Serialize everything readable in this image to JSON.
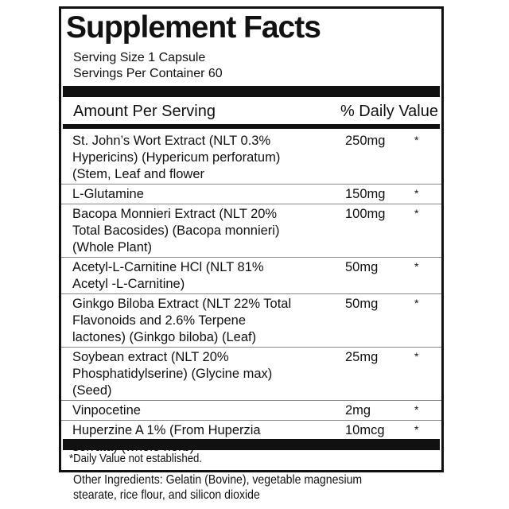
{
  "title": "Supplement Facts",
  "serving_size": "Serving Size 1 Capsule",
  "servings_per_container": "Servings Per Container 60",
  "header": {
    "amount": "Amount Per Serving",
    "daily_value": "% Daily Value"
  },
  "ingredients": [
    {
      "lines": [
        "St. John’s Wort Extract (NLT 0.3%",
        "Hypericins) (Hypericum perforatum)",
        "(Stem, Leaf and flower"
      ],
      "amount": "250mg",
      "dv": "*"
    },
    {
      "lines": [
        "L-Glutamine"
      ],
      "amount": "150mg",
      "dv": "*"
    },
    {
      "lines": [
        "Bacopa Monnieri Extract (NLT 20%",
        "Total Bacosides) (Bacopa monnieri)",
        "(Whole Plant)"
      ],
      "amount": "100mg",
      "dv": "*"
    },
    {
      "lines": [
        "Acetyl-L-Carnitine HCl (NLT 81%",
        "Acetyl -L-Carnitine)"
      ],
      "amount": "50mg",
      "dv": "*"
    },
    {
      "lines": [
        "Ginkgo Biloba Extract (NLT 22% Total",
        "Flavonoids and 2.6% Terpene",
        "lactones) (Ginkgo biloba) (Leaf)"
      ],
      "amount": "50mg",
      "dv": "*"
    },
    {
      "lines": [
        "Soybean extract (NLT 20%",
        "Phosphatidylserine) (Glycine max)",
        "(Seed)"
      ],
      "amount": "25mg",
      "dv": "*"
    },
    {
      "lines": [
        "Vinpocetine"
      ],
      "amount": "2mg",
      "dv": "*"
    },
    {
      "lines": [
        "Huperzine A 1% (From Huperzia",
        "serrata) (whole herb)"
      ],
      "amount": "10mcg",
      "dv": "*"
    }
  ],
  "footnote": "*Daily Value not established.",
  "other_ingredients": [
    "Other Ingredients: Gelatin (Bovine), vegetable magnesium",
    "stearate, rice flour, and silicon dioxide"
  ]
}
